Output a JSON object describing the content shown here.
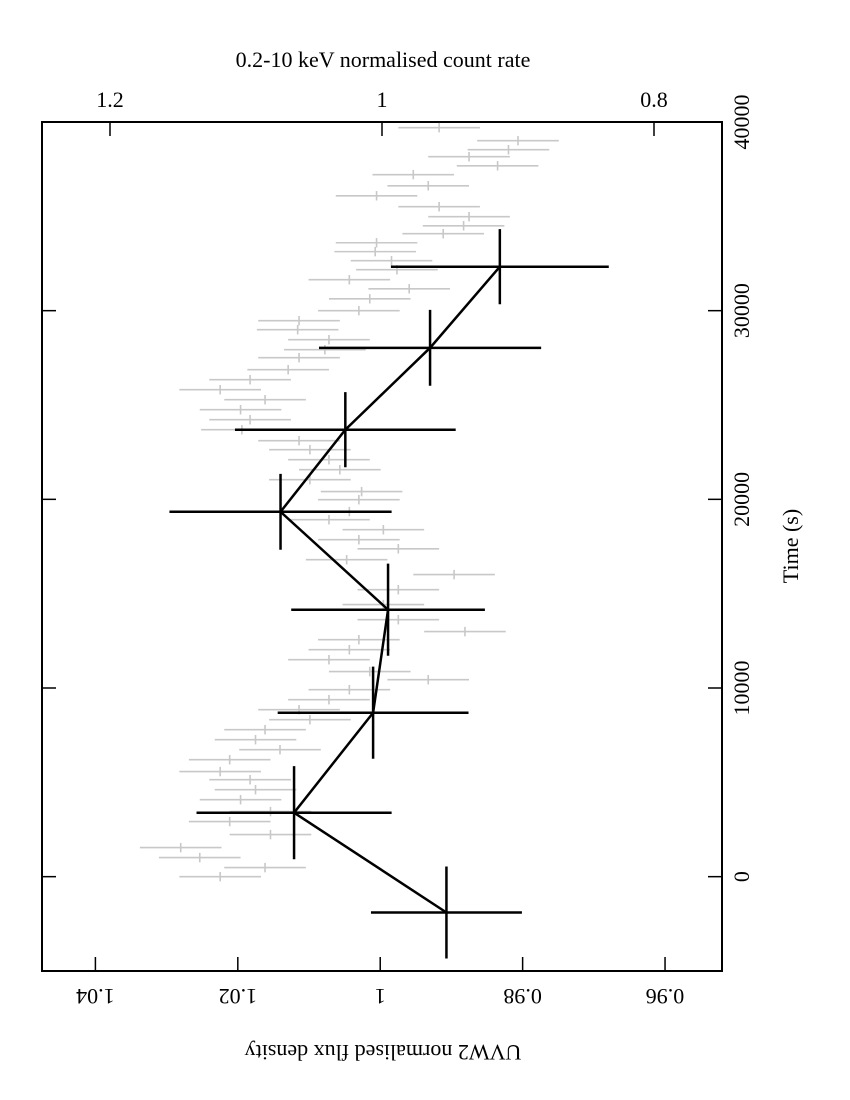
{
  "chart_data": {
    "type": "errorbar",
    "xlabel": "UVW2 normalised flux density",
    "x2label": "0.2-10 keV normalised count rate",
    "ylabel": "Time (s)",
    "xlim": [
      1.0475,
      0.952
    ],
    "xticks": [
      1.04,
      1.02,
      1,
      0.98,
      0.96
    ],
    "x2lim": [
      1.25,
      0.75
    ],
    "x2ticks": [
      1.2,
      1,
      0.8
    ],
    "ylim": [
      -5000,
      40000
    ],
    "yticks": [
      0,
      10000,
      20000,
      30000,
      40000
    ],
    "series": [
      {
        "axis": "x2",
        "color": "#c8c8c8",
        "errors": 0.03,
        "x_err": 250,
        "x": [
          39700,
          39010,
          38530,
          38160,
          37680,
          37210,
          36620,
          36090,
          35510,
          34980,
          34500,
          34080,
          33600,
          33130,
          32650,
          32170,
          31640,
          31160,
          30630,
          30000,
          29470,
          28990,
          28460,
          27930,
          27510,
          26870,
          26340,
          25810,
          25280,
          24750,
          24220,
          23690,
          23110,
          22630,
          22100,
          21570,
          21040,
          20410,
          19980,
          19350,
          18920,
          18390,
          17860,
          17380,
          16800,
          16010,
          15210,
          14420,
          13620,
          12990,
          12560,
          12030,
          11500,
          10870,
          10440,
          9910,
          9380,
          8850,
          8320,
          7790,
          7260,
          6730,
          6200,
          5570,
          5140,
          4610,
          4080,
          3450,
          2920,
          2230,
          1540,
          1010,
          480,
          0
        ],
        "values": [
          0.958,
          0.9,
          0.907,
          0.936,
          0.915,
          0.977,
          0.966,
          1.004,
          0.958,
          0.936,
          0.94,
          0.955,
          1.004,
          1.005,
          0.993,
          0.989,
          1.024,
          0.98,
          1.009,
          1.017,
          1.061,
          1.062,
          1.039,
          1.042,
          1.061,
          1.069,
          1.097,
          1.119,
          1.086,
          1.104,
          1.097,
          1.103,
          1.061,
          1.053,
          1.039,
          1.031,
          1.053,
          1.015,
          1.017,
          1.024,
          1.039,
          0.999,
          1.017,
          0.988,
          1.026,
          0.947,
          0.988,
          0.999,
          0.988,
          0.939,
          1.017,
          1.024,
          1.039,
          1.009,
          0.966,
          1.024,
          1.039,
          1.061,
          1.053,
          1.086,
          1.093,
          1.075,
          1.112,
          1.119,
          1.097,
          1.093,
          1.104,
          1.082,
          1.112,
          1.082,
          1.148,
          1.134,
          1.086,
          1.119
        ]
      },
      {
        "axis": "x",
        "color": "#000000",
        "x": [
          -1900,
          3390,
          8690,
          14150,
          19340,
          23690,
          28030,
          32330
        ],
        "x_err": [
          2440,
          2470,
          2440,
          2440,
          2010,
          1990,
          2010,
          1990
        ],
        "values": [
          0.9907,
          1.0121,
          1.001,
          0.9989,
          1.014,
          1.0049,
          0.993,
          0.9832
        ],
        "errors": [
          0.0106,
          0.0137,
          0.0134,
          0.0136,
          0.0156,
          0.0155,
          0.0156,
          0.0153
        ]
      }
    ]
  }
}
